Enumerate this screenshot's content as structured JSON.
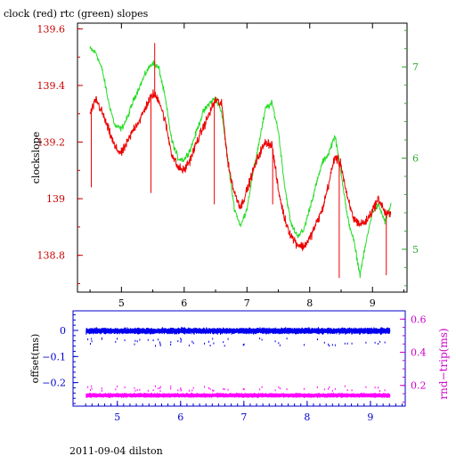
{
  "title": "clock (red) rtc (green) slopes",
  "footer": "2011-09-04 dilston",
  "colors": {
    "red": "#ee0000",
    "green": "#22dd22",
    "blue": "#0000ee",
    "magenta": "#ff00ff",
    "axis_red": "#cc0000",
    "axis_green": "#33aa33",
    "axis_blue": "#0000cc",
    "axis_magenta": "#cc00cc"
  },
  "chart_data": [
    {
      "type": "line",
      "title": "clock (red) rtc (green) slopes",
      "ylabel": "clockslope",
      "xlim": [
        4.3,
        9.55
      ],
      "ylim": [
        138.67,
        139.62
      ],
      "y2lim": [
        4.53,
        7.48
      ],
      "x_ticks": [
        "5",
        "6",
        "7",
        "8",
        "9"
      ],
      "y_ticks": [
        "139.6",
        "139.4",
        "139.2",
        "139",
        "138.8"
      ],
      "y2_ticks": [
        "7",
        "6",
        "5"
      ],
      "series": [
        {
          "name": "clock",
          "axis": "left",
          "points": [
            [
              4.5,
              139.3
            ],
            [
              4.6,
              139.35
            ],
            [
              4.7,
              139.3
            ],
            [
              4.8,
              139.24
            ],
            [
              4.9,
              139.18
            ],
            [
              5.0,
              139.16
            ],
            [
              5.1,
              139.2
            ],
            [
              5.2,
              139.25
            ],
            [
              5.3,
              139.28
            ],
            [
              5.4,
              139.33
            ],
            [
              5.5,
              139.37
            ],
            [
              5.6,
              139.35
            ],
            [
              5.7,
              139.27
            ],
            [
              5.8,
              139.16
            ],
            [
              5.9,
              139.11
            ],
            [
              6.0,
              139.1
            ],
            [
              6.1,
              139.14
            ],
            [
              6.2,
              139.2
            ],
            [
              6.3,
              139.25
            ],
            [
              6.4,
              139.3
            ],
            [
              6.5,
              139.35
            ],
            [
              6.6,
              139.33
            ],
            [
              6.7,
              139.12
            ],
            [
              6.8,
              139.02
            ],
            [
              6.9,
              138.97
            ],
            [
              7.0,
              139.03
            ],
            [
              7.1,
              139.1
            ],
            [
              7.2,
              139.16
            ],
            [
              7.3,
              139.2
            ],
            [
              7.4,
              139.19
            ],
            [
              7.5,
              139.03
            ],
            [
              7.6,
              138.93
            ],
            [
              7.7,
              138.87
            ],
            [
              7.8,
              138.84
            ],
            [
              7.9,
              138.83
            ],
            [
              8.0,
              138.86
            ],
            [
              8.1,
              138.91
            ],
            [
              8.2,
              138.96
            ],
            [
              8.3,
              139.05
            ],
            [
              8.4,
              139.15
            ],
            [
              8.5,
              139.12
            ],
            [
              8.6,
              139.0
            ],
            [
              8.7,
              138.93
            ],
            [
              8.8,
              138.91
            ],
            [
              8.9,
              138.92
            ],
            [
              9.0,
              138.96
            ],
            [
              9.1,
              139.0
            ],
            [
              9.2,
              138.95
            ],
            [
              9.3,
              138.94
            ]
          ]
        },
        {
          "name": "rtc",
          "axis": "right",
          "points": [
            [
              4.5,
              7.2
            ],
            [
              4.6,
              7.15
            ],
            [
              4.7,
              6.95
            ],
            [
              4.8,
              6.6
            ],
            [
              4.9,
              6.35
            ],
            [
              5.0,
              6.32
            ],
            [
              5.1,
              6.45
            ],
            [
              5.2,
              6.65
            ],
            [
              5.3,
              6.8
            ],
            [
              5.4,
              6.95
            ],
            [
              5.5,
              7.05
            ],
            [
              5.6,
              6.98
            ],
            [
              5.7,
              6.65
            ],
            [
              5.8,
              6.2
            ],
            [
              5.9,
              6.0
            ],
            [
              6.0,
              5.98
            ],
            [
              6.1,
              6.1
            ],
            [
              6.2,
              6.3
            ],
            [
              6.3,
              6.5
            ],
            [
              6.4,
              6.6
            ],
            [
              6.5,
              6.66
            ],
            [
              6.6,
              6.5
            ],
            [
              6.7,
              5.95
            ],
            [
              6.8,
              5.45
            ],
            [
              6.9,
              5.25
            ],
            [
              7.0,
              5.45
            ],
            [
              7.1,
              5.85
            ],
            [
              7.2,
              6.2
            ],
            [
              7.3,
              6.55
            ],
            [
              7.4,
              6.6
            ],
            [
              7.5,
              6.3
            ],
            [
              7.6,
              5.7
            ],
            [
              7.7,
              5.28
            ],
            [
              7.8,
              5.15
            ],
            [
              7.9,
              5.2
            ],
            [
              8.0,
              5.45
            ],
            [
              8.1,
              5.7
            ],
            [
              8.2,
              5.95
            ],
            [
              8.3,
              6.05
            ],
            [
              8.4,
              6.25
            ],
            [
              8.5,
              5.85
            ],
            [
              8.6,
              5.35
            ],
            [
              8.7,
              5.1
            ],
            [
              8.8,
              4.72
            ],
            [
              8.9,
              5.08
            ],
            [
              9.0,
              5.42
            ],
            [
              9.1,
              5.48
            ],
            [
              9.2,
              5.3
            ],
            [
              9.3,
              5.5
            ]
          ]
        }
      ]
    },
    {
      "type": "scatter",
      "ylabel": "offset(ms)",
      "y2label": "rnd−trip(ms)",
      "xlim": [
        4.3,
        9.55
      ],
      "ylim": [
        -0.29,
        0.075
      ],
      "y2lim": [
        0.075,
        0.65
      ],
      "x_ticks": [
        "5",
        "6",
        "7",
        "8",
        "9"
      ],
      "y_ticks": [
        "0",
        "−0.1",
        "−0.2"
      ],
      "y2_ticks": [
        "0.6",
        "0.4",
        "0.2"
      ],
      "series": [
        {
          "name": "offset",
          "axis": "left",
          "x_range": [
            4.5,
            9.3
          ],
          "mean": -0.002,
          "spread": 0.012
        },
        {
          "name": "rnd-trip",
          "axis": "right",
          "x_range": [
            4.5,
            9.3
          ],
          "mean": 0.14,
          "spread": 0.012
        }
      ]
    }
  ]
}
